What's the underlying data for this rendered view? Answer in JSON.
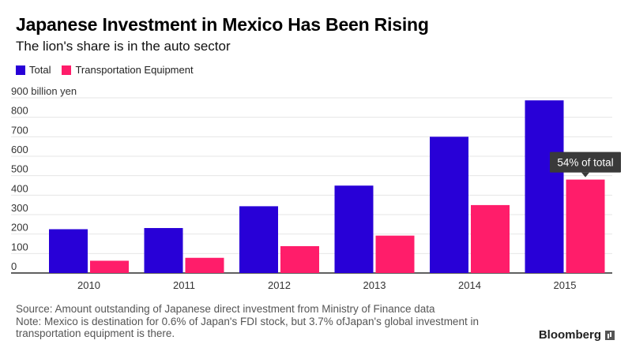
{
  "header": {
    "title": "Japanese Investment in Mexico Has Been Rising",
    "subtitle": "The lion's share is in the auto sector"
  },
  "footer": {
    "source": "Source: Amount outstanding of Japanese direct investment from Ministry of Finance data",
    "note": "Note: Mexico is destination for 0.6% of Japan's FDI stock, but 3.7% ofJapan's global investment in transportation equipment is there.",
    "brand": "Bloomberg"
  },
  "chart_data": {
    "type": "bar",
    "title": "Japanese Investment in Mexico Has Been Rising",
    "subtitle": "The lion's share is in the auto sector",
    "xlabel": "",
    "ylabel": "",
    "y_unit": "billion yen",
    "ylim": [
      0,
      900
    ],
    "yticks": [
      0,
      100,
      200,
      300,
      400,
      500,
      600,
      700,
      800,
      900
    ],
    "ytick_labels": [
      "0",
      "100",
      "200",
      "300",
      "400",
      "500",
      "600",
      "700",
      "800",
      "900 billion yen"
    ],
    "grid": true,
    "legend_position": "top-left",
    "categories": [
      "2010",
      "2011",
      "2012",
      "2013",
      "2014",
      "2015"
    ],
    "series": [
      {
        "name": "Total",
        "color": "#2800d7",
        "values": [
          225,
          231,
          343,
          449,
          700,
          887
        ]
      },
      {
        "name": "Transportation Equipment",
        "color": "#ff1d6a",
        "values": [
          63,
          78,
          138,
          192,
          349,
          480
        ]
      }
    ],
    "annotations": [
      {
        "text": "54% of total",
        "series": "Transportation Equipment",
        "category": "2015"
      }
    ]
  }
}
